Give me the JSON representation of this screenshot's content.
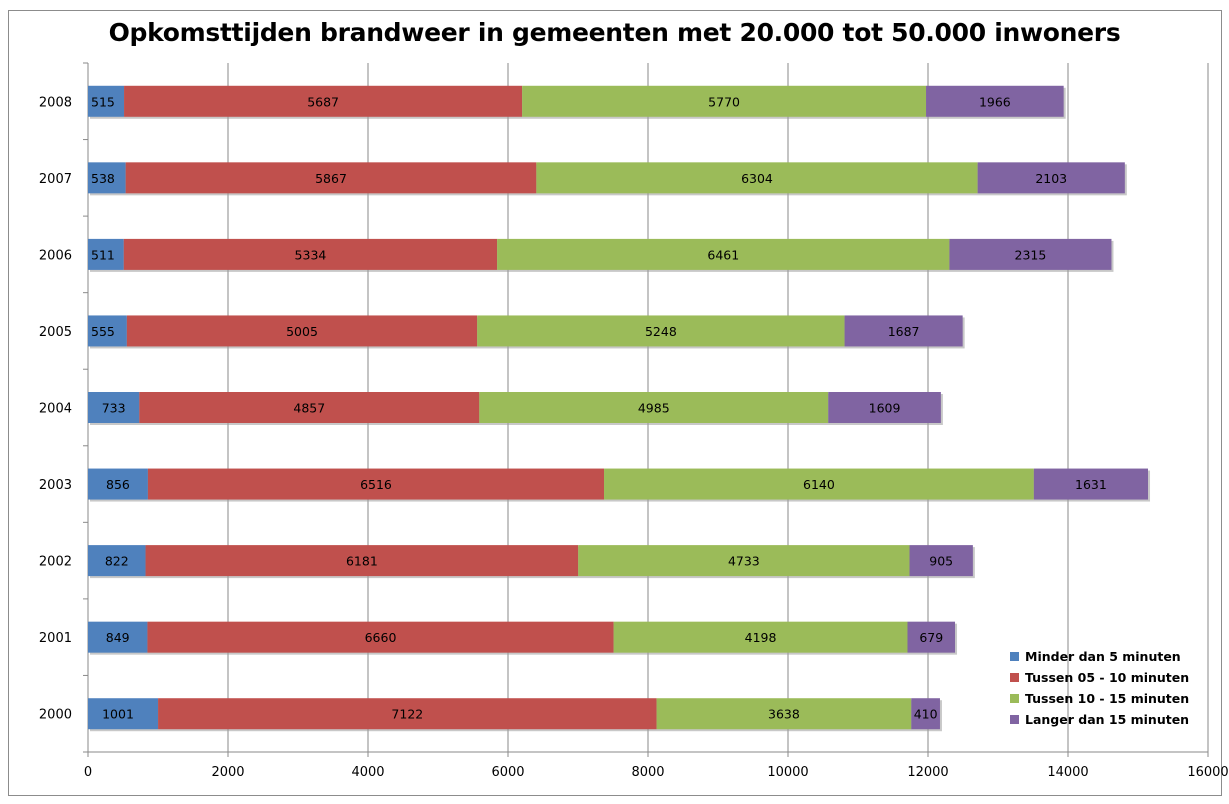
{
  "chart_data": {
    "type": "bar",
    "orientation": "horizontal",
    "stacked": true,
    "title": "Opkomsttijden brandweer in gemeenten met 20.000 tot 50.000 inwoners",
    "xlabel": "",
    "ylabel": "",
    "categories": [
      "2000",
      "2001",
      "2002",
      "2003",
      "2004",
      "2005",
      "2006",
      "2007",
      "2008"
    ],
    "series": [
      {
        "name": "Minder dan 5 minuten",
        "color": "#4f81bd",
        "values": [
          1001,
          849,
          822,
          856,
          733,
          555,
          511,
          538,
          515
        ]
      },
      {
        "name": "Tussen 05 - 10 minuten",
        "color": "#c0504d",
        "values": [
          7122,
          6660,
          6181,
          6516,
          4857,
          5005,
          5334,
          5867,
          5687
        ]
      },
      {
        "name": "Tussen 10 - 15 minuten",
        "color": "#9bbb59",
        "values": [
          3638,
          4198,
          4733,
          6140,
          4985,
          5248,
          6461,
          6304,
          5770
        ]
      },
      {
        "name": "Langer dan 15 minuten",
        "color": "#8064a2",
        "values": [
          410,
          679,
          905,
          1631,
          1609,
          1687,
          2315,
          2103,
          1966
        ]
      }
    ],
    "xlim": [
      0,
      16000
    ],
    "xticks": [
      "0",
      "2000",
      "4000",
      "6000",
      "8000",
      "10000",
      "12000",
      "14000",
      "16000"
    ],
    "grid": true,
    "data_labels": true,
    "legend_position": "bottom-right"
  }
}
